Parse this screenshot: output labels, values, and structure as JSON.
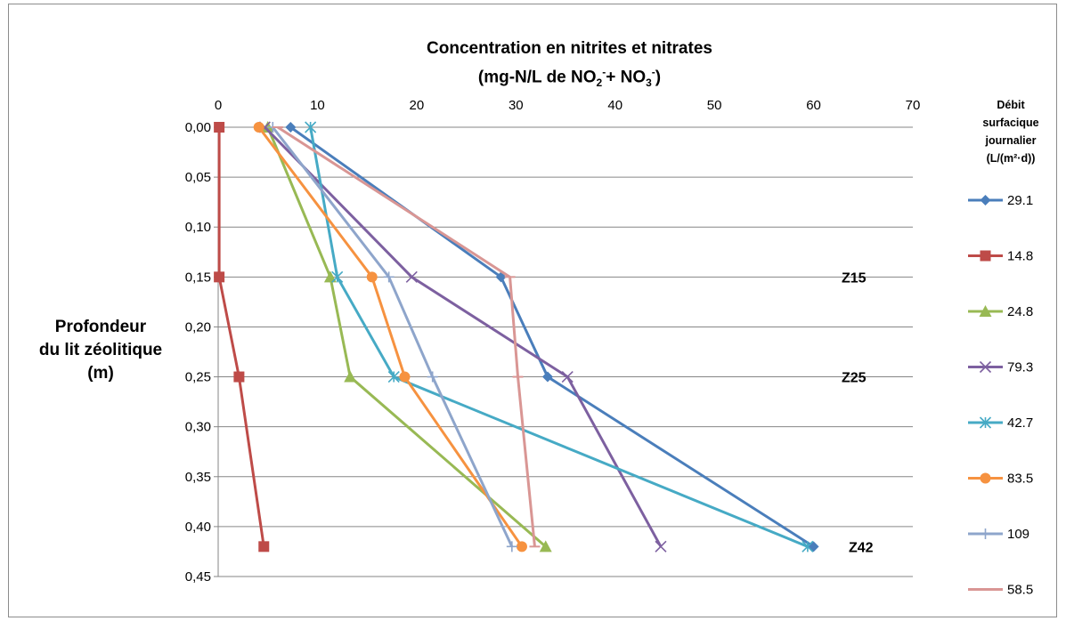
{
  "chart_data": {
    "type": "line",
    "title_line1": "Concentration en  nitrites et nitrates",
    "title_line2": {
      "prefix": "(mg-N/L de NO",
      "sub1": "2",
      "sup1": "-",
      "middle": "+ NO",
      "sub2": "3",
      "sup2": "-",
      "suffix": ")"
    },
    "ylabel_lines": [
      "Profondeur",
      "du lit zéolitique",
      "(m)"
    ],
    "legend_title_lines": [
      "Débit",
      "surfacique",
      "journalier",
      "(L/(m²·d))"
    ],
    "xlim": [
      0,
      70
    ],
    "ylim": [
      0,
      0.45
    ],
    "x_axis_position": "top",
    "y_axis_reversed": true,
    "x_ticks": [
      0,
      10,
      20,
      30,
      40,
      50,
      60,
      70
    ],
    "x_tick_labels": [
      "0",
      "10",
      "20",
      "30",
      "40",
      "50",
      "60",
      "70"
    ],
    "y_ticks": [
      0,
      0.05,
      0.1,
      0.15,
      0.2,
      0.25,
      0.3,
      0.35,
      0.4,
      0.45
    ],
    "y_tick_labels": [
      "0,00",
      "0,05",
      "0,10",
      "0,15",
      "0,20",
      "0,25",
      "0,30",
      "0,35",
      "0,40",
      "0,45"
    ],
    "grid": "horizontal",
    "legend_position": "right",
    "annotations": [
      {
        "text": "Z15",
        "depth": 0.15
      },
      {
        "text": "Z25",
        "depth": 0.25
      },
      {
        "text": "Z42",
        "depth": 0.42
      }
    ],
    "series": [
      {
        "name": "29.1",
        "color": "#4a7ebb",
        "marker": "diamond",
        "points": [
          [
            7.3,
            0
          ],
          [
            28.5,
            0.15
          ],
          [
            33.2,
            0.25
          ],
          [
            60.0,
            0.42
          ]
        ]
      },
      {
        "name": "14.8",
        "color": "#be4b48",
        "marker": "square",
        "points": [
          [
            0.1,
            0
          ],
          [
            0.1,
            0.15
          ],
          [
            2.1,
            0.25
          ],
          [
            4.6,
            0.42
          ]
        ]
      },
      {
        "name": "24.8",
        "color": "#98b954",
        "marker": "triangle",
        "points": [
          [
            5.0,
            0
          ],
          [
            11.3,
            0.15
          ],
          [
            13.3,
            0.25
          ],
          [
            33.0,
            0.42
          ]
        ]
      },
      {
        "name": "79.3",
        "color": "#7d60a0",
        "marker": "x",
        "points": [
          [
            4.7,
            0
          ],
          [
            19.5,
            0.15
          ],
          [
            35.2,
            0.25
          ],
          [
            44.6,
            0.42
          ]
        ]
      },
      {
        "name": "42.7",
        "color": "#46aac5",
        "marker": "star",
        "points": [
          [
            9.3,
            0
          ],
          [
            12.0,
            0.15
          ],
          [
            17.7,
            0.25
          ],
          [
            59.4,
            0.42
          ]
        ]
      },
      {
        "name": "83.5",
        "color": "#f69240",
        "marker": "circle",
        "points": [
          [
            4.1,
            0
          ],
          [
            15.5,
            0.15
          ],
          [
            18.8,
            0.25
          ],
          [
            30.6,
            0.42
          ]
        ]
      },
      {
        "name": "109",
        "color": "#8ea5cb",
        "marker": "plus",
        "points": [
          [
            5.5,
            0
          ],
          [
            17.2,
            0.15
          ],
          [
            21.6,
            0.25
          ],
          [
            29.6,
            0.42
          ]
        ]
      },
      {
        "name": "58.5",
        "color": "#d99694",
        "marker": "dash",
        "points": [
          [
            6.0,
            0
          ],
          [
            29.4,
            0.15
          ],
          [
            30.2,
            0.25
          ],
          [
            31.9,
            0.42
          ]
        ]
      }
    ]
  }
}
